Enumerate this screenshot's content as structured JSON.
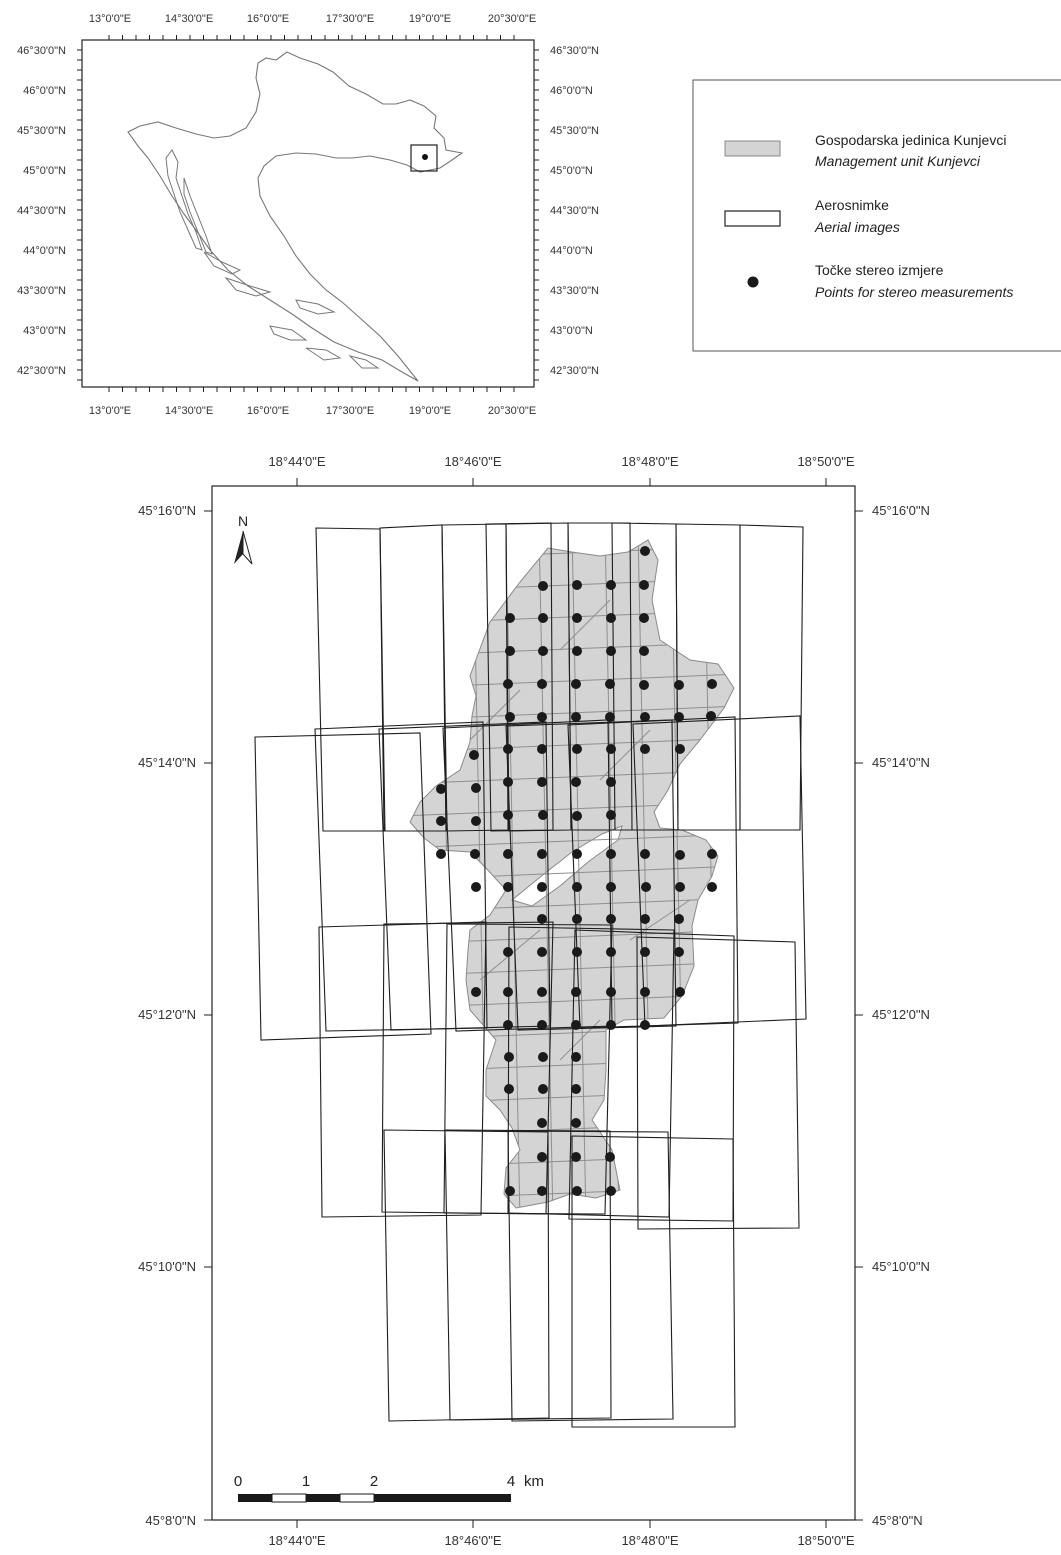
{
  "inset_map": {
    "x_labels": [
      "13°0'0\"E",
      "14°30'0\"E",
      "16°0'0\"E",
      "17°30'0\"E",
      "19°0'0\"E",
      "20°30'0\"E"
    ],
    "y_labels": [
      "46°30'0\"N",
      "46°0'0\"N",
      "45°30'0\"N",
      "45°0'0\"N",
      "44°30'0\"N",
      "44°0'0\"N",
      "43°30'0\"N",
      "43°0'0\"N",
      "42°30'0\"N"
    ]
  },
  "legend": {
    "items": [
      {
        "label": "Gospodarska jedinica Kunjevci",
        "label_en": "Management unit Kunjevci",
        "symbol": "grey-polygon"
      },
      {
        "label": "Aerosnimke",
        "label_en": "Aerial images",
        "symbol": "outline-rectangle"
      },
      {
        "label": "Točke stereo izmjere",
        "label_en": "Points for stereo measurements",
        "symbol": "black-dot"
      }
    ]
  },
  "main_map": {
    "x_labels": [
      "18°44'0\"E",
      "18°46'0\"E",
      "18°48'0\"E",
      "18°50'0\"E"
    ],
    "y_labels": [
      "45°16'0\"N",
      "45°14'0\"N",
      "45°12'0\"N",
      "45°10'0\"N",
      "45°8'0\"N"
    ],
    "north_label": "N",
    "scale_bar": {
      "labels": [
        "0",
        "1",
        "2",
        "4"
      ],
      "unit": "km"
    }
  },
  "colors": {
    "unit_fill": "#d4d4d4",
    "unit_stroke": "#8a8a8a",
    "point": "#1a1a1a",
    "frame": "#222222"
  }
}
